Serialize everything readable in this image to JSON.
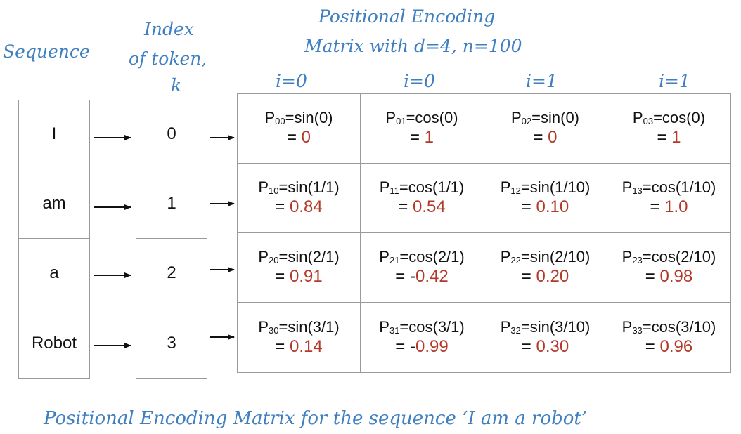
{
  "labels": {
    "sequence": "Sequence",
    "index_line1": "Index",
    "index_line2": "of token,",
    "index_line3": "k",
    "pe_title_line1": "Positional Encoding",
    "pe_title_line2": "Matrix with d=4, n=100",
    "caption": "Positional Encoding Matrix for the sequence ‘I am a robot’"
  },
  "columns": [
    "i=0",
    "i=0",
    "i=1",
    "i=1"
  ],
  "tokens": [
    "I",
    "am",
    "a",
    "Robot"
  ],
  "indices": [
    "0",
    "1",
    "2",
    "3"
  ],
  "matrix": [
    [
      {
        "p": "P",
        "sub": "00",
        "expr": "=sin(0)",
        "eq": "= ",
        "val": "0"
      },
      {
        "p": "P",
        "sub": "01",
        "expr": "=cos(0)",
        "eq": "= ",
        "val": "1"
      },
      {
        "p": "P",
        "sub": "02",
        "expr": "=sin(0)",
        "eq": "= ",
        "val": "0"
      },
      {
        "p": "P",
        "sub": "03",
        "expr": "=cos(0)",
        "eq": "= ",
        "val": "1"
      }
    ],
    [
      {
        "p": "P",
        "sub": "10",
        "expr": "=sin(1/1)",
        "eq": "= ",
        "val": "0.84"
      },
      {
        "p": "P",
        "sub": "11",
        "expr": "=cos(1/1)",
        "eq": "= ",
        "val": "0.54"
      },
      {
        "p": "P",
        "sub": "12",
        "expr": "=sin(1/10)",
        "eq": "= ",
        "val": "0.10"
      },
      {
        "p": "P",
        "sub": "13",
        "expr": "=cos(1/10)",
        "eq": "= ",
        "val": "1.0"
      }
    ],
    [
      {
        "p": "P",
        "sub": "20",
        "expr": "=sin(2/1)",
        "eq": "= ",
        "val": "0.91"
      },
      {
        "p": "P",
        "sub": "21",
        "expr": "=cos(2/1)",
        "eq": "= -",
        "val": "0.42"
      },
      {
        "p": "P",
        "sub": "22",
        "expr": "=sin(2/10)",
        "eq": "= ",
        "val": "0.20"
      },
      {
        "p": "P",
        "sub": "23",
        "expr": "=cos(2/10)",
        "eq": "= ",
        "val": "0.98"
      }
    ],
    [
      {
        "p": "P",
        "sub": "30",
        "expr": "=sin(3/1)",
        "eq": "= ",
        "val": "0.14"
      },
      {
        "p": "P",
        "sub": "31",
        "expr": "=cos(3/1)",
        "eq": "= -",
        "val": "0.99"
      },
      {
        "p": "P",
        "sub": "32",
        "expr": "=sin(3/10)",
        "eq": "= ",
        "val": "0.30"
      },
      {
        "p": "P",
        "sub": "33",
        "expr": "=cos(3/10)",
        "eq": "= ",
        "val": "0.96"
      }
    ]
  ],
  "colors": {
    "annotation": "#3f7fc0",
    "value": "#b33a2a",
    "grid": "#9a9a9a"
  }
}
